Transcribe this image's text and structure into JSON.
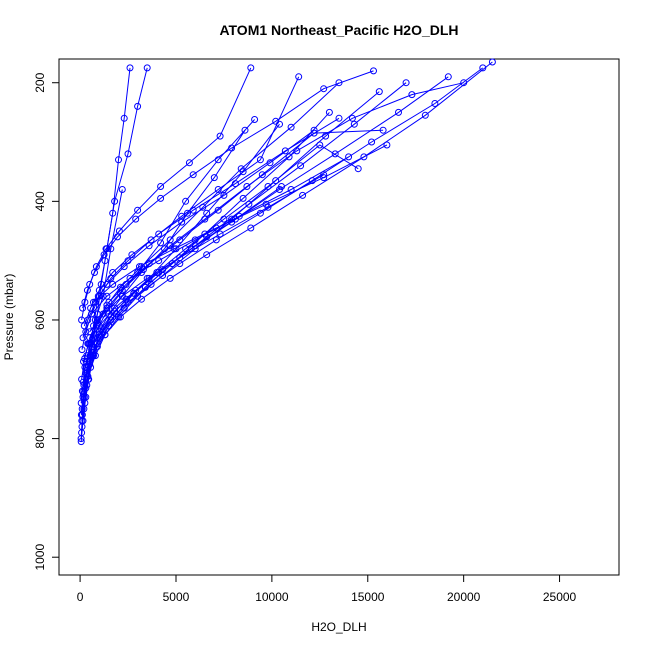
{
  "chart_data": {
    "type": "line",
    "title": "ATOM1 Northeast_Pacific H2O_DLH",
    "xlabel": "H2O_DLH",
    "ylabel": "Pressure (mbar)",
    "xlim": [
      -1100,
      28100
    ],
    "ylim": [
      1030,
      160
    ],
    "y_inverted": true,
    "xticks": [
      0,
      5000,
      10000,
      15000,
      20000,
      25000
    ],
    "yticks": [
      200,
      400,
      600,
      800,
      1000
    ],
    "grid": false,
    "legend": "none",
    "color": "#0000ff",
    "series": [
      {
        "x": [
          50,
          120,
          200,
          350,
          500,
          800,
          1200,
          1600,
          2200
        ],
        "y": [
          800,
          760,
          720,
          680,
          640,
          600,
          560,
          480,
          380
        ]
      },
      {
        "x": [
          60,
          150,
          300,
          420,
          550,
          700,
          950,
          1300,
          1700,
          2000,
          2300,
          2600
        ],
        "y": [
          805,
          770,
          730,
          700,
          660,
          610,
          560,
          500,
          420,
          330,
          260,
          175
        ]
      },
      {
        "x": [
          80,
          200,
          350,
          500,
          700,
          900,
          1100,
          1400,
          1800,
          2500,
          3000,
          3500
        ],
        "y": [
          790,
          750,
          710,
          670,
          630,
          590,
          540,
          480,
          400,
          320,
          240,
          175
        ]
      },
      {
        "x": [
          100,
          250,
          450,
          700,
          1000,
          1500,
          2200,
          3200,
          4400,
          5600,
          7000,
          8600
        ],
        "y": [
          780,
          740,
          700,
          660,
          620,
          590,
          560,
          520,
          480,
          420,
          360,
          280
        ]
      },
      {
        "x": [
          70,
          180,
          350,
          600,
          900,
          1400,
          2100,
          3000,
          4200,
          5500,
          7200,
          9100
        ],
        "y": [
          760,
          725,
          690,
          650,
          615,
          585,
          555,
          520,
          470,
          400,
          330,
          262
        ]
      },
      {
        "x": [
          90,
          220,
          400,
          650,
          1000,
          1600,
          2400,
          3600,
          5000,
          6600,
          8500,
          10400
        ],
        "y": [
          770,
          730,
          695,
          660,
          625,
          595,
          565,
          530,
          480,
          420,
          350,
          270
        ]
      },
      {
        "x": [
          110,
          300,
          550,
          900,
          1500,
          2300,
          3400,
          4800,
          6500,
          8500,
          10900,
          13000
        ],
        "y": [
          750,
          715,
          680,
          645,
          610,
          580,
          545,
          505,
          455,
          395,
          325,
          250
        ]
      },
      {
        "x": [
          60,
          160,
          320,
          560,
          900,
          1400,
          2100,
          3200,
          4700,
          6400,
          8400,
          11000,
          13500
        ],
        "y": [
          740,
          705,
          670,
          640,
          605,
          575,
          545,
          510,
          465,
          410,
          345,
          275,
          200
        ]
      },
      {
        "x": [
          150,
          400,
          800,
          1300,
          2000,
          3000,
          4300,
          6000,
          7900,
          10200,
          12800,
          15600
        ],
        "y": [
          730,
          695,
          660,
          625,
          595,
          560,
          525,
          480,
          430,
          365,
          290,
          215
        ]
      },
      {
        "x": [
          120,
          350,
          700,
          1200,
          1900,
          2800,
          4000,
          5500,
          7500,
          9800,
          12500,
          14500
        ],
        "y": [
          720,
          685,
          650,
          620,
          590,
          555,
          520,
          480,
          430,
          375,
          305,
          345
        ]
      },
      {
        "x": [
          200,
          500,
          900,
          1500,
          2300,
          3400,
          4800,
          6600,
          8800,
          11500,
          14300,
          17000
        ],
        "y": [
          710,
          675,
          640,
          610,
          580,
          545,
          505,
          460,
          405,
          340,
          270,
          200
        ]
      },
      {
        "x": [
          80,
          240,
          500,
          900,
          1500,
          2400,
          3600,
          5200,
          7200,
          9500,
          12200,
          15800
        ],
        "y": [
          700,
          665,
          630,
          600,
          570,
          540,
          505,
          465,
          415,
          355,
          285,
          280
        ]
      },
      {
        "x": [
          300,
          700,
          1300,
          2100,
          3200,
          4700,
          6600,
          8900,
          11600,
          14800,
          18000,
          21500
        ],
        "y": [
          690,
          655,
          625,
          595,
          565,
          530,
          490,
          445,
          390,
          325,
          255,
          165
        ]
      },
      {
        "x": [
          250,
          600,
          1100,
          1800,
          2800,
          4100,
          5800,
          7900,
          10400,
          13300,
          16600,
          19200
        ],
        "y": [
          680,
          645,
          615,
          585,
          555,
          520,
          480,
          435,
          380,
          320,
          250,
          190
        ]
      },
      {
        "x": [
          180,
          450,
          850,
          1400,
          2200,
          3300,
          4700,
          6500,
          8700,
          11300,
          14200,
          17300,
          20000
        ],
        "y": [
          670,
          640,
          610,
          580,
          550,
          515,
          475,
          430,
          375,
          315,
          260,
          220,
          200
        ]
      },
      {
        "x": [
          350,
          900,
          1600,
          2500,
          3700,
          5200,
          7100,
          9400,
          12100,
          15200,
          18500,
          21000
        ],
        "y": [
          660,
          630,
          600,
          570,
          540,
          505,
          465,
          420,
          365,
          300,
          235,
          175
        ]
      },
      {
        "x": [
          100,
          300,
          600,
          1000,
          1600,
          2500,
          3700,
          5300,
          7200,
          9400,
          11400
        ],
        "y": [
          650,
          620,
          590,
          560,
          530,
          500,
          465,
          425,
          380,
          330,
          190
        ]
      },
      {
        "x": [
          400,
          1000,
          1800,
          2900,
          4300,
          6000,
          8100,
          10500
        ],
        "y": [
          640,
          610,
          580,
          550,
          515,
          475,
          430,
          375
        ]
      },
      {
        "x": [
          150,
          400,
          800,
          1400,
          2300,
          3600,
          5300,
          7500,
          9900,
          12200
        ],
        "y": [
          630,
          600,
          570,
          540,
          510,
          475,
          435,
          390,
          335,
          280
        ]
      },
      {
        "x": [
          500,
          1200,
          2200,
          3500,
          5200,
          7300,
          9800,
          12700
        ],
        "y": [
          620,
          590,
          560,
          530,
          495,
          455,
          410,
          355
        ]
      },
      {
        "x": [
          220,
          550,
          1000,
          1700,
          2700,
          4100,
          5900,
          8100,
          10700,
          13500
        ],
        "y": [
          610,
          580,
          550,
          520,
          490,
          455,
          415,
          370,
          315,
          260
        ]
      },
      {
        "x": [
          80,
          250,
          500,
          850,
          1350,
          2050,
          3000,
          4200,
          5700,
          7300,
          8900
        ],
        "y": [
          600,
          570,
          540,
          510,
          480,
          450,
          415,
          375,
          335,
          290,
          175
        ]
      },
      {
        "x": [
          600,
          1400,
          2600,
          4100,
          6000,
          8300,
          11000,
          14000
        ],
        "y": [
          590,
          560,
          530,
          500,
          465,
          425,
          380,
          325
        ]
      },
      {
        "x": [
          130,
          380,
          750,
          1250,
          1950,
          2900,
          4200,
          5900,
          7900,
          10200,
          12700,
          15300
        ],
        "y": [
          580,
          550,
          520,
          490,
          460,
          430,
          395,
          355,
          310,
          265,
          210,
          180
        ]
      },
      {
        "x": [
          700,
          1700,
          3100,
          4900,
          7100,
          9700,
          12700,
          16000
        ],
        "y": [
          570,
          540,
          510,
          480,
          445,
          405,
          360,
          305
        ]
      }
    ]
  }
}
